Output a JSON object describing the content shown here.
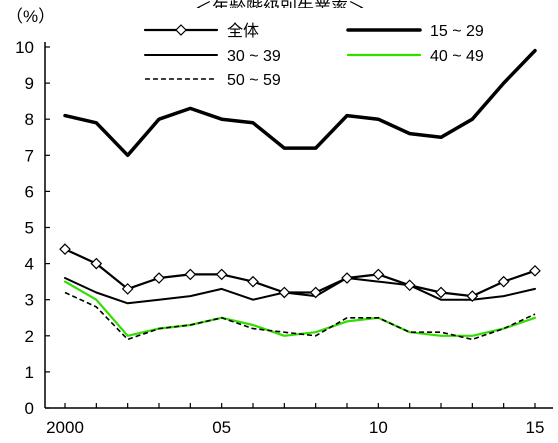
{
  "chart_data": {
    "type": "line",
    "title": "＜年齢階級別失業率＞",
    "ylabel": "（%）",
    "xlabel": "",
    "ylim": [
      0,
      10
    ],
    "yticks": [
      "0",
      "1",
      "2",
      "3",
      "4",
      "5",
      "6",
      "7",
      "8",
      "9",
      "10"
    ],
    "x": [
      2000,
      2001,
      2002,
      2003,
      2004,
      2005,
      2006,
      2007,
      2008,
      2009,
      2010,
      2011,
      2012,
      2013,
      2014,
      2015
    ],
    "xtick_labels": [
      {
        "x": 2000,
        "label": "2000"
      },
      {
        "x": 2005,
        "label": "05"
      },
      {
        "x": 2010,
        "label": "10"
      },
      {
        "x": 2015,
        "label": "15"
      }
    ],
    "series": [
      {
        "name": "全体",
        "color": "#000000",
        "style": "solid-diamond",
        "values": [
          4.4,
          4.0,
          3.3,
          3.6,
          3.7,
          3.7,
          3.5,
          3.2,
          3.2,
          3.6,
          3.7,
          3.4,
          3.2,
          3.1,
          3.5,
          3.8
        ]
      },
      {
        "name": "15 ~ 29",
        "color": "#000000",
        "style": "thick",
        "values": [
          8.1,
          7.9,
          7.0,
          8.0,
          8.3,
          8.0,
          7.9,
          7.2,
          7.2,
          8.1,
          8.0,
          7.6,
          7.5,
          8.0,
          9.0,
          9.9
        ]
      },
      {
        "name": "30 ~ 39",
        "color": "#000000",
        "style": "solid",
        "values": [
          3.6,
          3.2,
          2.9,
          3.0,
          3.1,
          3.3,
          3.0,
          3.2,
          3.1,
          3.6,
          3.5,
          3.4,
          3.0,
          3.0,
          3.1,
          3.3
        ]
      },
      {
        "name": "40 ~ 49",
        "color": "#33dd00",
        "style": "solid-green",
        "values": [
          3.5,
          3.0,
          2.0,
          2.2,
          2.3,
          2.5,
          2.3,
          2.0,
          2.1,
          2.4,
          2.5,
          2.1,
          2.0,
          2.0,
          2.2,
          2.5
        ]
      },
      {
        "name": "50 ~ 59",
        "color": "#000000",
        "style": "dashed",
        "values": [
          3.2,
          2.8,
          1.9,
          2.2,
          2.3,
          2.5,
          2.2,
          2.1,
          2.0,
          2.5,
          2.5,
          2.1,
          2.1,
          1.9,
          2.2,
          2.6
        ]
      }
    ],
    "grid": false,
    "legend": "top-inside"
  }
}
